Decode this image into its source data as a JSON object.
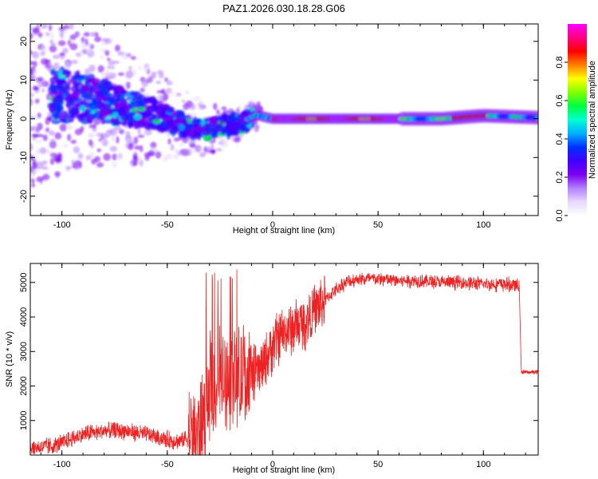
{
  "title": "PAZ1.2026.030.18.28.G06",
  "chart_data": [
    {
      "type": "heatmap",
      "xlabel": "Height of straight line (km)",
      "ylabel": "Frequency (Hz)",
      "xlim": [
        -115,
        126
      ],
      "ylim": [
        -25,
        24.5
      ],
      "x_ticks": [
        -100,
        -50,
        0,
        50,
        100
      ],
      "x_tick_labels": [
        "-100",
        "-50",
        "0",
        "50",
        "100"
      ],
      "y_ticks": [
        -20,
        -10,
        0,
        10,
        20
      ],
      "y_tick_labels": [
        "-20",
        "-10",
        "0",
        "10",
        "20"
      ],
      "colorbar": {
        "label": "Normalized spectral amplitude",
        "range": [
          0,
          1
        ],
        "ticks": [
          0.0,
          0.2,
          0.4,
          0.6,
          0.8
        ],
        "tick_labels": [
          "0.0",
          "0.2",
          "0.4",
          "0.6",
          "0.8"
        ],
        "colormap": [
          "#ffffff",
          "#e8d8ff",
          "#b380ff",
          "#7a00f0",
          "#4000ff",
          "#0030ff",
          "#00b0ff",
          "#00ffd0",
          "#00ff40",
          "#80ff00",
          "#ffff00",
          "#ff8000",
          "#ff0000",
          "#ff0080",
          "#ff00ff"
        ]
      },
      "trend": {
        "description_points_x": [
          -100,
          -85,
          -70,
          -55,
          -45,
          -35,
          -25,
          -15,
          -8,
          0,
          20,
          50,
          80,
          100,
          126
        ],
        "description_points_y": [
          6,
          5,
          3,
          1,
          -1,
          -3,
          -2,
          -1,
          1,
          0,
          0,
          0,
          0,
          0.8,
          0.3
        ]
      }
    },
    {
      "type": "line",
      "xlabel": "Height of straight line (km)",
      "ylabel": "SNR (10 * v/v)",
      "xlim": [
        -115,
        126
      ],
      "ylim": [
        0,
        5550
      ],
      "x_ticks": [
        -100,
        -50,
        0,
        50,
        100
      ],
      "x_tick_labels": [
        "-100",
        "-50",
        "0",
        "50",
        "100"
      ],
      "y_ticks": [
        1000,
        2000,
        3000,
        4000,
        5000
      ],
      "y_tick_labels": [
        "1000",
        "2000",
        "3000",
        "4000",
        "5000"
      ],
      "color": "#ee2222",
      "series": [
        {
          "name": "SNR",
          "x": [
            -115,
            -105,
            -100,
            -90,
            -80,
            -70,
            -60,
            -50,
            -45,
            -40,
            -35,
            -30,
            -25,
            -20,
            -15,
            -10,
            -5,
            0,
            5,
            10,
            15,
            20,
            25,
            30,
            35,
            40,
            50,
            60,
            70,
            80,
            90,
            100,
            110,
            117,
            118,
            120,
            126
          ],
          "y": [
            200,
            250,
            350,
            600,
            700,
            700,
            600,
            450,
            400,
            500,
            700,
            1800,
            2200,
            2300,
            2200,
            2300,
            2500,
            3200,
            3500,
            3700,
            3800,
            4200,
            4500,
            4800,
            5000,
            5100,
            5100,
            5050,
            5050,
            5000,
            5000,
            4950,
            4950,
            4900,
            2400,
            2400,
            2400
          ]
        }
      ]
    }
  ]
}
